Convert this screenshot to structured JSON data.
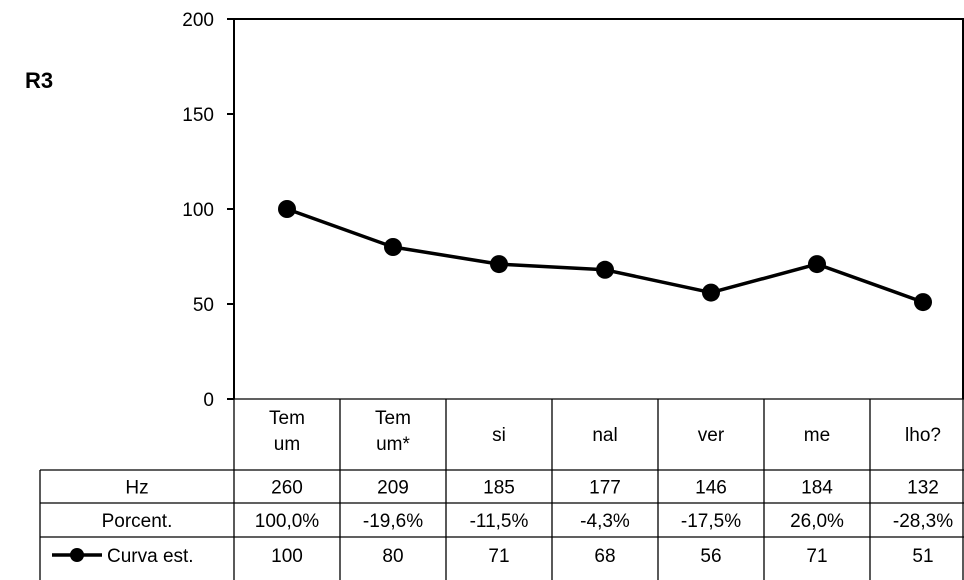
{
  "chart_data": {
    "type": "line",
    "title": "R3",
    "ylim": [
      0,
      200
    ],
    "yticks": [
      0,
      50,
      100,
      150,
      200
    ],
    "categories": [
      "Tem\num",
      "Tem\num*",
      "si",
      "nal",
      "ver",
      "me",
      "lho?"
    ],
    "series": [
      {
        "name": "Curva est.",
        "values": [
          100,
          80,
          71,
          68,
          56,
          71,
          51
        ],
        "color": "#000000",
        "marker": "circle"
      }
    ],
    "table": {
      "rows": [
        {
          "label": "Hz",
          "values": [
            "260",
            "209",
            "185",
            "177",
            "146",
            "184",
            "132"
          ]
        },
        {
          "label": "Porcent.",
          "values": [
            "100,0%",
            "-19,6%",
            "-11,5%",
            "-4,3%",
            "-17,5%",
            "26,0%",
            "-28,3%"
          ]
        },
        {
          "label": "Curva est.",
          "values": [
            "100",
            "80",
            "71",
            "68",
            "56",
            "71",
            "51"
          ],
          "legend_key": true
        }
      ]
    },
    "grid": false,
    "legend": "data-table"
  }
}
